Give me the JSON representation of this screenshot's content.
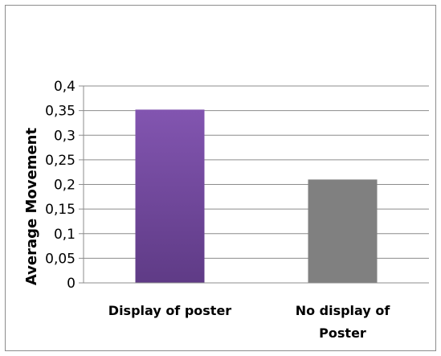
{
  "chart_data": {
    "type": "bar",
    "title": "",
    "xlabel": "",
    "ylabel": "Average Movement",
    "ylim": [
      0,
      0.4
    ],
    "yticks": [
      "0",
      "0,05",
      "0,1",
      "0,15",
      "0,2",
      "0,25",
      "0,3",
      "0,35",
      "0,4"
    ],
    "grid": true,
    "legend": "none",
    "categories": [
      [
        "Display of poster"
      ],
      [
        "No display of",
        "Poster"
      ]
    ],
    "values": [
      0.352,
      0.21
    ],
    "colors": [
      "#7a4fa3",
      "#808080"
    ]
  }
}
